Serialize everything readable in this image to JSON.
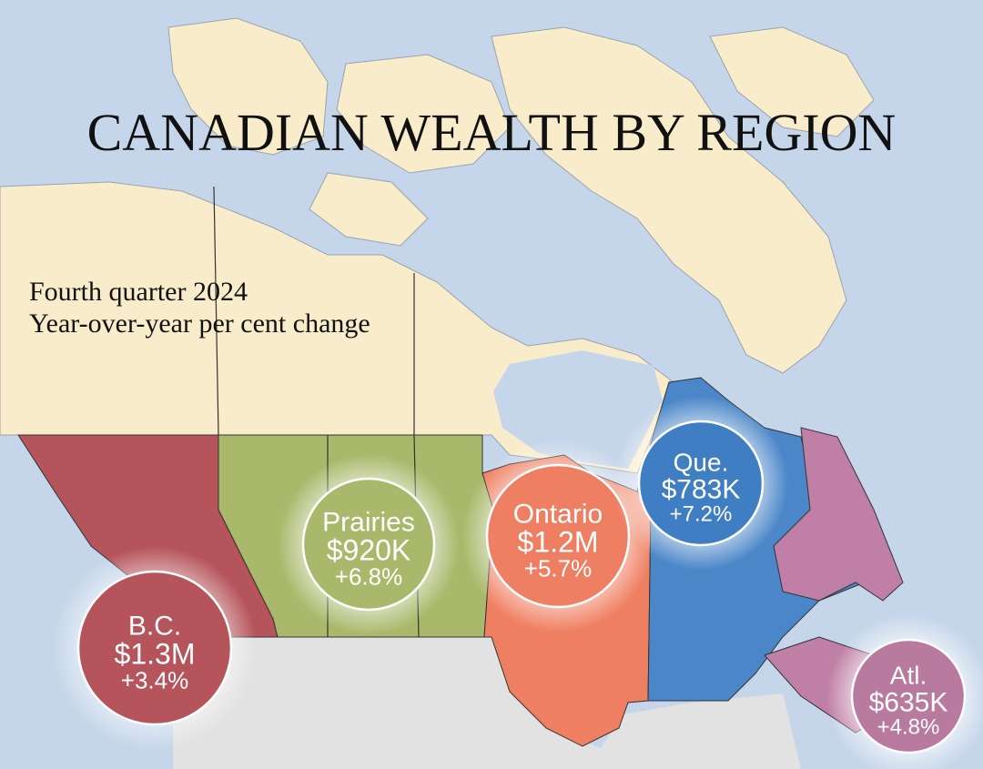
{
  "header": {
    "title": "CANADIAN WEALTH BY REGION",
    "subtitle": [
      "Fourth quarter 2024",
      "Year-over-year per cent change"
    ]
  },
  "regions": [
    {
      "name": "B.C.",
      "wealth": "$1.3M",
      "change": "+3.4%"
    },
    {
      "name": "Prairies",
      "wealth": "$920K",
      "change": "+6.8%"
    },
    {
      "name": "Ontario",
      "wealth": "$1.2M",
      "change": "+5.7%"
    },
    {
      "name": "Que.",
      "wealth": "$783K",
      "change": "+7.2%"
    },
    {
      "name": "Atl.",
      "wealth": "$635K",
      "change": "+4.8%"
    }
  ]
}
